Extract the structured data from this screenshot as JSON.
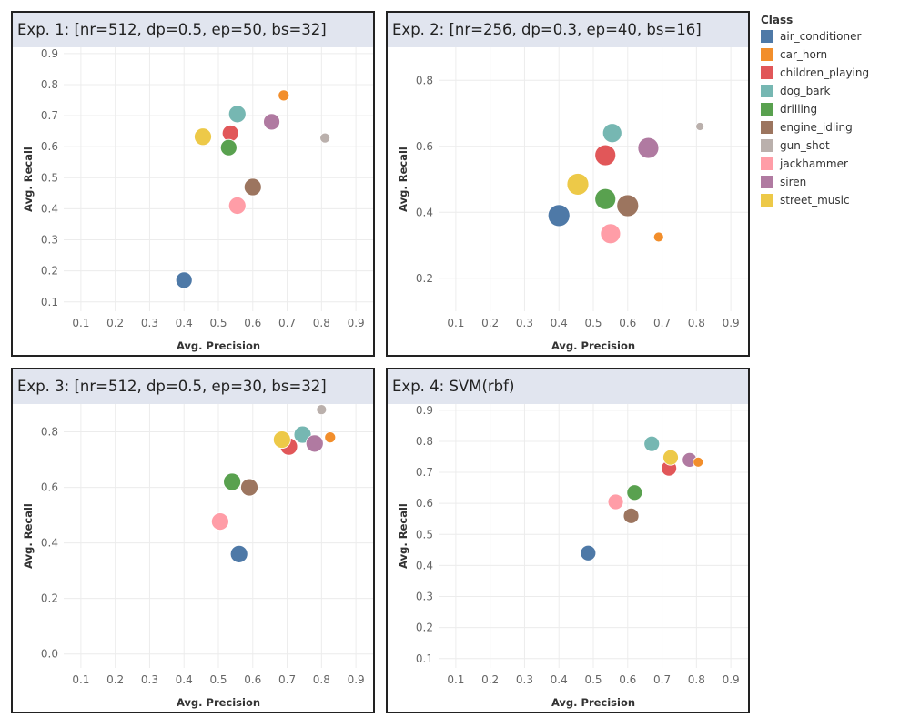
{
  "legend": {
    "title": "Class",
    "items": [
      {
        "label": "air_conditioner",
        "color": "#4e79a7"
      },
      {
        "label": "car_horn",
        "color": "#f28e2b"
      },
      {
        "label": "children_playing",
        "color": "#e15759"
      },
      {
        "label": "dog_bark",
        "color": "#76b7b2"
      },
      {
        "label": "drilling",
        "color": "#59a14f"
      },
      {
        "label": "engine_idling",
        "color": "#9c755f"
      },
      {
        "label": "gun_shot",
        "color": "#bab0ac"
      },
      {
        "label": "jackhammer",
        "color": "#ff9da7"
      },
      {
        "label": "siren",
        "color": "#b07aa1"
      },
      {
        "label": "street_music",
        "color": "#edc948"
      }
    ]
  },
  "chart_data": [
    {
      "type": "scatter",
      "title": "Exp. 1: [nr=512, dp=0.5, ep=50, bs=32]",
      "xlabel": "Avg. Precision",
      "ylabel": "Avg. Recall",
      "xlim": [
        0.05,
        0.95
      ],
      "ylim": [
        0.07,
        0.92
      ],
      "xticks": [
        0.1,
        0.2,
        0.3,
        0.4,
        0.5,
        0.6,
        0.7,
        0.8,
        0.9
      ],
      "yticks": [
        0.1,
        0.2,
        0.3,
        0.4,
        0.5,
        0.6,
        0.7,
        0.8,
        0.9
      ],
      "grid": true,
      "points": [
        {
          "class": "air_conditioner",
          "x": 0.4,
          "y": 0.17,
          "size": 9
        },
        {
          "class": "car_horn",
          "x": 0.69,
          "y": 0.765,
          "size": 6
        },
        {
          "class": "children_playing",
          "x": 0.535,
          "y": 0.643,
          "size": 9
        },
        {
          "class": "dog_bark",
          "x": 0.555,
          "y": 0.705,
          "size": 9.5
        },
        {
          "class": "drilling",
          "x": 0.53,
          "y": 0.597,
          "size": 9
        },
        {
          "class": "engine_idling",
          "x": 0.6,
          "y": 0.47,
          "size": 9.5
        },
        {
          "class": "gun_shot",
          "x": 0.81,
          "y": 0.628,
          "size": 5.5
        },
        {
          "class": "jackhammer",
          "x": 0.555,
          "y": 0.41,
          "size": 9.5
        },
        {
          "class": "siren",
          "x": 0.655,
          "y": 0.68,
          "size": 9
        },
        {
          "class": "street_music",
          "x": 0.455,
          "y": 0.632,
          "size": 9.5
        }
      ]
    },
    {
      "type": "scatter",
      "title": "Exp. 2: [nr=256, dp=0.3, ep=40, bs=16]",
      "xlabel": "Avg. Precision",
      "ylabel": "Avg. Recall",
      "xlim": [
        0.05,
        0.95
      ],
      "ylim": [
        0.1,
        0.9
      ],
      "xticks": [
        0.1,
        0.2,
        0.3,
        0.4,
        0.5,
        0.6,
        0.7,
        0.8,
        0.9
      ],
      "yticks": [
        0.2,
        0.4,
        0.6,
        0.8
      ],
      "grid": true,
      "points": [
        {
          "class": "air_conditioner",
          "x": 0.4,
          "y": 0.39,
          "size": 12
        },
        {
          "class": "car_horn",
          "x": 0.69,
          "y": 0.325,
          "size": 5.5
        },
        {
          "class": "children_playing",
          "x": 0.535,
          "y": 0.573,
          "size": 11.5
        },
        {
          "class": "dog_bark",
          "x": 0.555,
          "y": 0.64,
          "size": 10.5
        },
        {
          "class": "drilling",
          "x": 0.535,
          "y": 0.44,
          "size": 11.5
        },
        {
          "class": "engine_idling",
          "x": 0.6,
          "y": 0.42,
          "size": 12
        },
        {
          "class": "gun_shot",
          "x": 0.81,
          "y": 0.66,
          "size": 4.5
        },
        {
          "class": "jackhammer",
          "x": 0.55,
          "y": 0.335,
          "size": 11
        },
        {
          "class": "siren",
          "x": 0.66,
          "y": 0.595,
          "size": 11.5
        },
        {
          "class": "street_music",
          "x": 0.455,
          "y": 0.485,
          "size": 12
        }
      ]
    },
    {
      "type": "scatter",
      "title": "Exp. 3: [nr=512, dp=0.5, ep=30, bs=32]",
      "xlabel": "Avg. Precision",
      "ylabel": "Avg. Recall",
      "xlim": [
        0.05,
        0.95
      ],
      "ylim": [
        -0.05,
        0.9
      ],
      "xticks": [
        0.1,
        0.2,
        0.3,
        0.4,
        0.5,
        0.6,
        0.7,
        0.8,
        0.9
      ],
      "yticks": [
        0.0,
        0.2,
        0.4,
        0.6,
        0.8
      ],
      "ytick_labels": [
        "0.0",
        "0.2",
        "0.4",
        "0.6",
        "0.8"
      ],
      "grid": true,
      "points": [
        {
          "class": "air_conditioner",
          "x": 0.56,
          "y": 0.36,
          "size": 9.5
        },
        {
          "class": "car_horn",
          "x": 0.825,
          "y": 0.78,
          "size": 6
        },
        {
          "class": "children_playing",
          "x": 0.705,
          "y": 0.747,
          "size": 9.5
        },
        {
          "class": "dog_bark",
          "x": 0.745,
          "y": 0.79,
          "size": 9.5
        },
        {
          "class": "drilling",
          "x": 0.54,
          "y": 0.62,
          "size": 9.5
        },
        {
          "class": "engine_idling",
          "x": 0.59,
          "y": 0.6,
          "size": 9.5
        },
        {
          "class": "gun_shot",
          "x": 0.8,
          "y": 0.88,
          "size": 5.5
        },
        {
          "class": "jackhammer",
          "x": 0.505,
          "y": 0.477,
          "size": 9.5
        },
        {
          "class": "siren",
          "x": 0.78,
          "y": 0.758,
          "size": 9.5
        },
        {
          "class": "street_music",
          "x": 0.685,
          "y": 0.772,
          "size": 9.5
        }
      ]
    },
    {
      "type": "scatter",
      "title": "Exp. 4: SVM(rbf)",
      "xlabel": "Avg. Precision",
      "ylabel": "Avg. Recall",
      "xlim": [
        0.05,
        0.95
      ],
      "ylim": [
        0.07,
        0.92
      ],
      "xticks": [
        0.1,
        0.2,
        0.3,
        0.4,
        0.5,
        0.6,
        0.7,
        0.8,
        0.9
      ],
      "yticks": [
        0.1,
        0.2,
        0.3,
        0.4,
        0.5,
        0.6,
        0.7,
        0.8,
        0.9
      ],
      "grid": true,
      "points": [
        {
          "class": "air_conditioner",
          "x": 0.485,
          "y": 0.44,
          "size": 8.5
        },
        {
          "class": "car_horn",
          "x": 0.805,
          "y": 0.733,
          "size": 5.5
        },
        {
          "class": "children_playing",
          "x": 0.72,
          "y": 0.713,
          "size": 8.5
        },
        {
          "class": "dog_bark",
          "x": 0.67,
          "y": 0.792,
          "size": 8.5
        },
        {
          "class": "drilling",
          "x": 0.62,
          "y": 0.635,
          "size": 8.5
        },
        {
          "class": "engine_idling",
          "x": 0.61,
          "y": 0.56,
          "size": 8.5
        },
        {
          "class": "jackhammer",
          "x": 0.565,
          "y": 0.605,
          "size": 8.5
        },
        {
          "class": "siren",
          "x": 0.78,
          "y": 0.74,
          "size": 8
        },
        {
          "class": "street_music",
          "x": 0.725,
          "y": 0.748,
          "size": 8.5
        }
      ]
    }
  ]
}
